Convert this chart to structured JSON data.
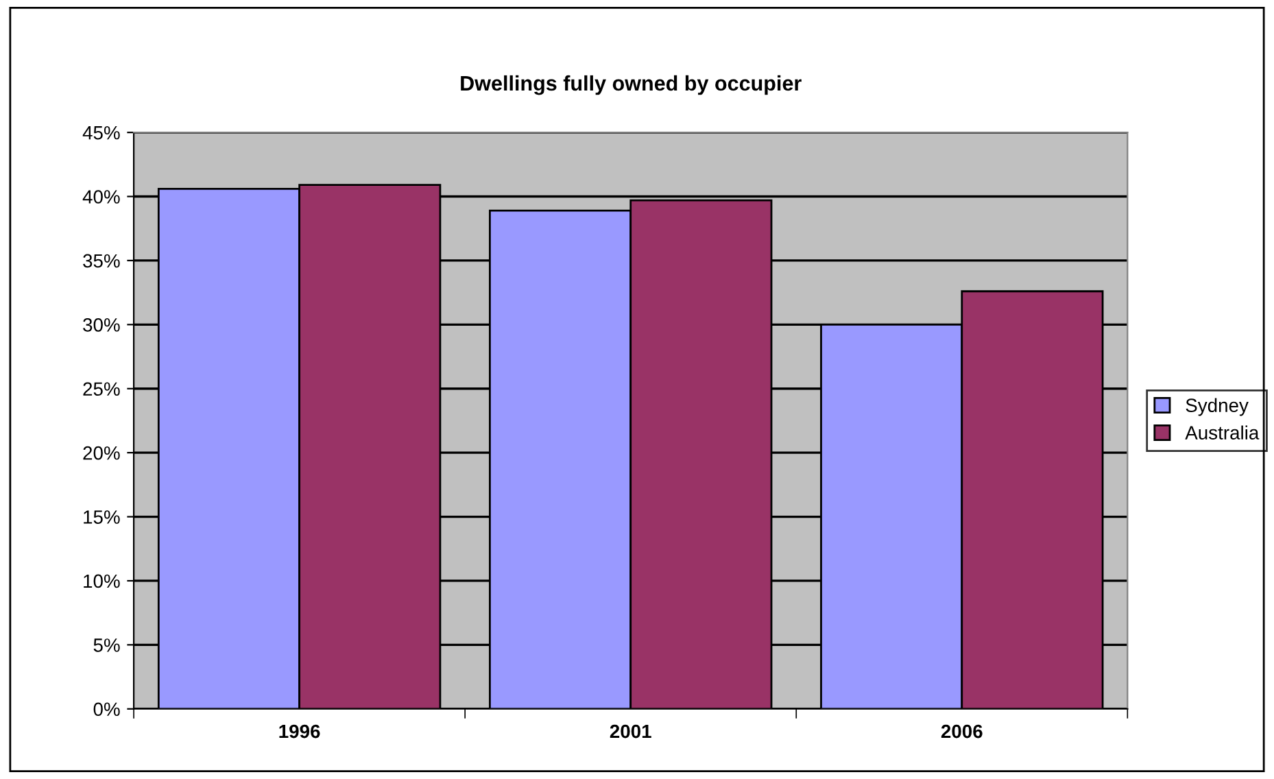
{
  "chart_data": {
    "type": "bar",
    "title": "Dwellings fully owned by occupier",
    "categories": [
      "1996",
      "2001",
      "2006"
    ],
    "series": [
      {
        "name": "Sydney",
        "color": "#9999ff",
        "values": [
          40.6,
          38.9,
          30.0
        ]
      },
      {
        "name": "Australia",
        "color": "#993366",
        "values": [
          40.9,
          39.7,
          32.6
        ]
      }
    ],
    "ylim": [
      0,
      45
    ],
    "yticks": [
      {
        "value": 0,
        "label": "0%"
      },
      {
        "value": 5,
        "label": "5%"
      },
      {
        "value": 10,
        "label": "10%"
      },
      {
        "value": 15,
        "label": "15%"
      },
      {
        "value": 20,
        "label": "20%"
      },
      {
        "value": 25,
        "label": "25%"
      },
      {
        "value": 30,
        "label": "30%"
      },
      {
        "value": 35,
        "label": "35%"
      },
      {
        "value": 40,
        "label": "40%"
      },
      {
        "value": 45,
        "label": "45%"
      }
    ],
    "grid": "y",
    "legend": "right"
  }
}
